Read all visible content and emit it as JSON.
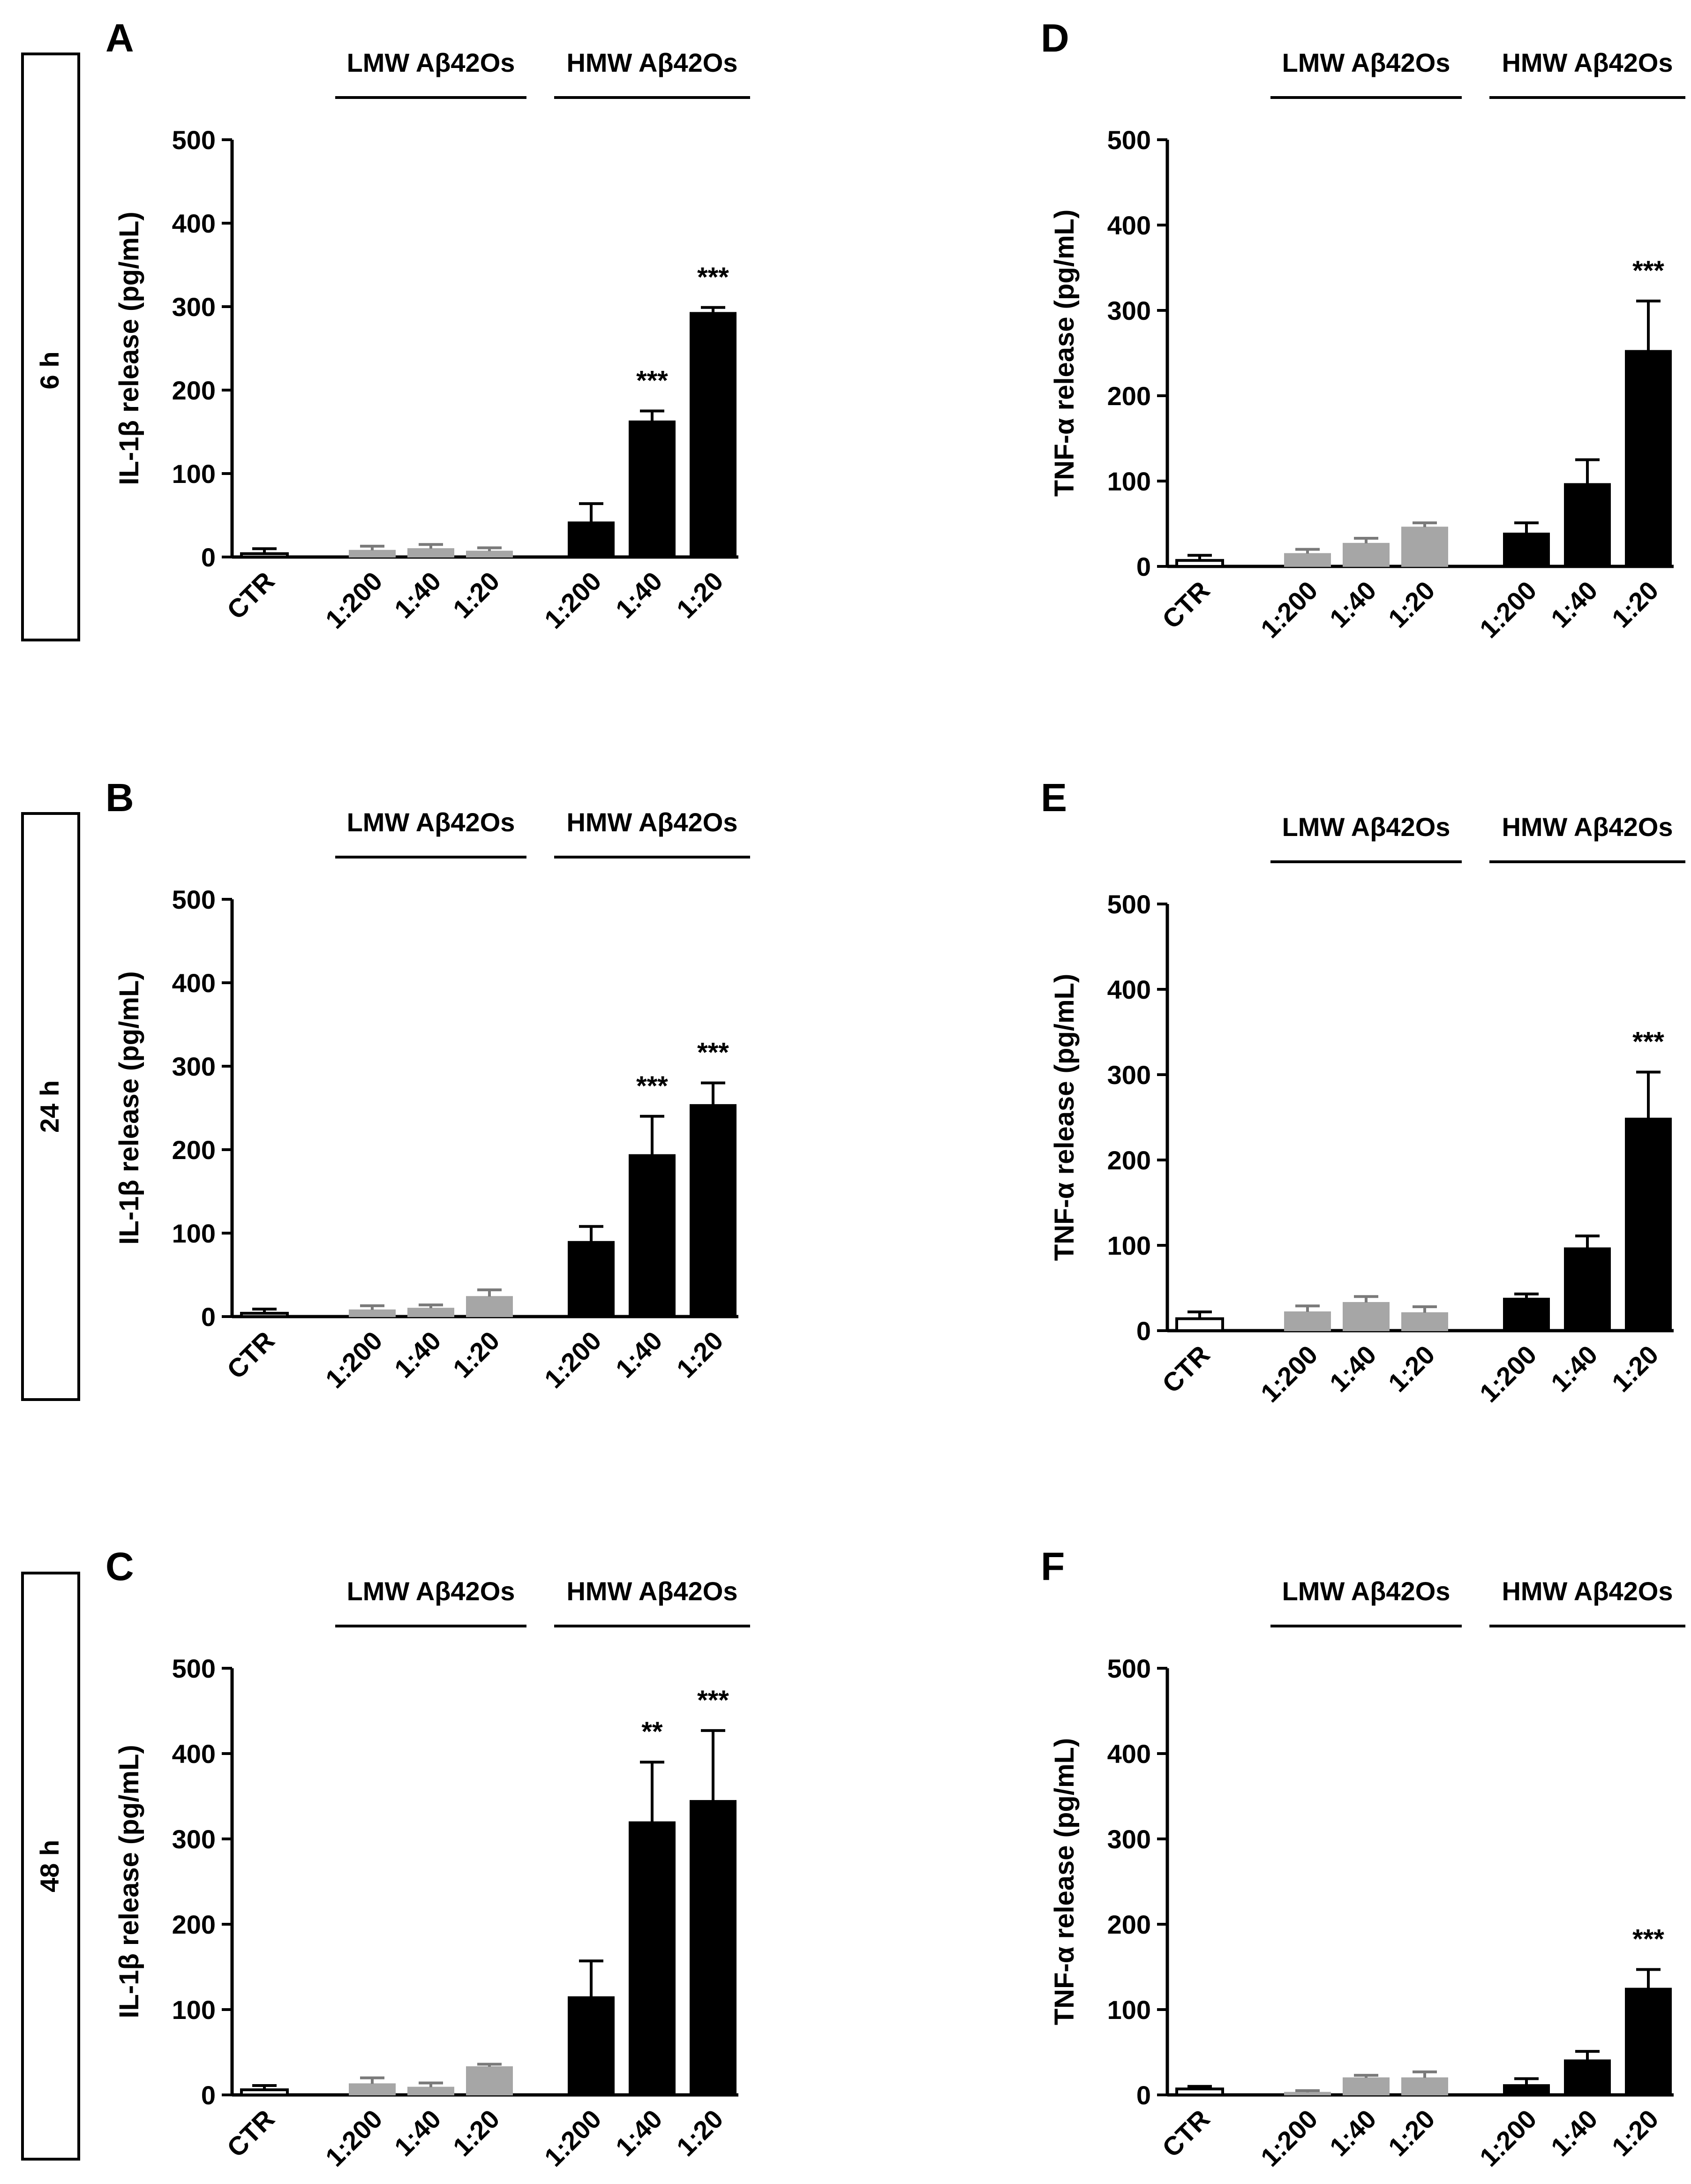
{
  "figure": {
    "categories": [
      "CTR",
      "1:200",
      "1:40",
      "1:20",
      "1:200",
      "1:40",
      "1:20"
    ],
    "group_labels": {
      "lmw": "LMW Aβ42Os",
      "hmw": "HMW Aβ42Os"
    },
    "row_labels": [
      "6 h",
      "24 h",
      "48 h"
    ],
    "colors": {
      "ctr": "#ffffff",
      "lmw": "#a6a6a6",
      "hmw": "#000000",
      "axis": "#000000"
    }
  },
  "chart_data": [
    {
      "panel": "A",
      "type": "bar",
      "time": "6 h",
      "ylabel": "IL-1β release (pg/mL)",
      "ylim": [
        0,
        500
      ],
      "yticks": [
        0,
        100,
        200,
        300,
        400,
        500
      ],
      "categories": [
        "CTR",
        "1:200",
        "1:40",
        "1:20",
        "1:200",
        "1:40",
        "1:20"
      ],
      "values": [
        4,
        8,
        10,
        7,
        42,
        163,
        293
      ],
      "errors": [
        6,
        5,
        5,
        4,
        22,
        12,
        6
      ],
      "significance": [
        "",
        "",
        "",
        "",
        "",
        "***",
        "***"
      ]
    },
    {
      "panel": "B",
      "type": "bar",
      "time": "24 h",
      "ylabel": "IL-1β release (pg/mL)",
      "ylim": [
        0,
        500
      ],
      "yticks": [
        0,
        100,
        200,
        300,
        400,
        500
      ],
      "categories": [
        "CTR",
        "1:200",
        "1:40",
        "1:20",
        "1:200",
        "1:40",
        "1:20"
      ],
      "values": [
        4,
        8,
        10,
        24,
        90,
        194,
        254
      ],
      "errors": [
        5,
        5,
        4,
        8,
        18,
        46,
        26
      ],
      "significance": [
        "",
        "",
        "",
        "",
        "",
        "***",
        "***"
      ]
    },
    {
      "panel": "C",
      "type": "bar",
      "time": "48 h",
      "ylabel": "IL-1β release (pg/mL)",
      "ylim": [
        0,
        500
      ],
      "yticks": [
        0,
        100,
        200,
        300,
        400,
        500
      ],
      "categories": [
        "CTR",
        "1:200",
        "1:40",
        "1:20",
        "1:200",
        "1:40",
        "1:20"
      ],
      "values": [
        6,
        13,
        9,
        33,
        115,
        320,
        345
      ],
      "errors": [
        5,
        7,
        5,
        3,
        42,
        70,
        82
      ],
      "significance": [
        "",
        "",
        "",
        "",
        "",
        "**",
        "***"
      ]
    },
    {
      "panel": "D",
      "type": "bar",
      "time": "6 h",
      "ylabel": "TNF-α release (pg/mL)",
      "ylim": [
        0,
        500
      ],
      "yticks": [
        0,
        100,
        200,
        300,
        400,
        500
      ],
      "categories": [
        "CTR",
        "1:200",
        "1:40",
        "1:20",
        "1:200",
        "1:40",
        "1:20"
      ],
      "values": [
        7,
        15,
        27,
        46,
        39,
        97,
        253
      ],
      "errors": [
        6,
        5,
        6,
        5,
        12,
        28,
        58
      ],
      "significance": [
        "",
        "",
        "",
        "",
        "",
        "",
        "***"
      ]
    },
    {
      "panel": "E",
      "type": "bar",
      "time": "24 h",
      "ylabel": "TNF-α release (pg/mL)",
      "ylim": [
        0,
        500
      ],
      "yticks": [
        0,
        100,
        200,
        300,
        400,
        500
      ],
      "categories": [
        "CTR",
        "1:200",
        "1:40",
        "1:20",
        "1:200",
        "1:40",
        "1:20"
      ],
      "values": [
        14,
        22,
        33,
        21,
        38,
        97,
        249
      ],
      "errors": [
        8,
        7,
        7,
        7,
        5,
        14,
        54
      ],
      "significance": [
        "",
        "",
        "",
        "",
        "",
        "",
        "***"
      ]
    },
    {
      "panel": "F",
      "type": "bar",
      "time": "48 h",
      "ylabel": "TNF-α release (pg/mL)",
      "ylim": [
        0,
        500
      ],
      "yticks": [
        0,
        100,
        200,
        300,
        400,
        500
      ],
      "categories": [
        "CTR",
        "1:200",
        "1:40",
        "1:20",
        "1:200",
        "1:40",
        "1:20"
      ],
      "values": [
        7,
        3,
        20,
        20,
        12,
        41,
        125
      ],
      "errors": [
        3,
        2,
        3,
        7,
        7,
        10,
        22
      ],
      "significance": [
        "",
        "",
        "",
        "",
        "",
        "",
        "***"
      ]
    }
  ]
}
